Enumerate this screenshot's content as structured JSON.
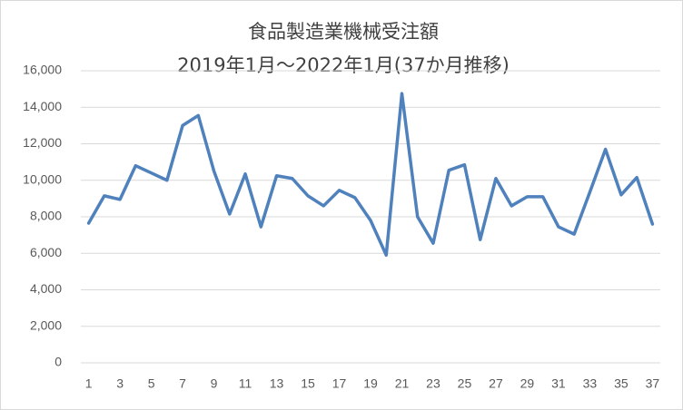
{
  "chart_data": {
    "type": "line",
    "title": "食品製造業機械受注額",
    "subtitle": "2019年1月～2022年1月(37か月推移)",
    "categories": [
      "1",
      null,
      "3",
      null,
      "5",
      null,
      "7",
      null,
      "9",
      null,
      "11",
      null,
      "13",
      null,
      "15",
      null,
      "17",
      null,
      "19",
      null,
      "21",
      null,
      "23",
      null,
      "25",
      null,
      "27",
      null,
      "29",
      null,
      "31",
      null,
      "33",
      null,
      "35",
      null,
      "37"
    ],
    "values": [
      7650,
      9150,
      8950,
      10800,
      10400,
      10000,
      13000,
      13550,
      10500,
      8150,
      10350,
      7450,
      10250,
      10100,
      9150,
      8600,
      9450,
      9050,
      7800,
      5900,
      14750,
      8000,
      6550,
      10550,
      10850,
      6750,
      10100,
      8600,
      9100,
      9100,
      7450,
      7050,
      9350,
      11700,
      9200,
      10150,
      7600
    ],
    "color": "#4f81bd",
    "ylim": [
      0,
      16000
    ],
    "yticks": [
      0,
      {
        "value": 2000,
        "label": "2,000"
      },
      {
        "value": 4000,
        "label": "4,000"
      },
      {
        "value": 6000,
        "label": "6,000"
      },
      {
        "value": 8000,
        "label": "8,000"
      },
      {
        "value": 10000,
        "label": "10,000"
      },
      {
        "value": 12000,
        "label": "12,000"
      },
      {
        "value": 14000,
        "label": "14,000"
      },
      {
        "value": 16000,
        "label": "16,000"
      }
    ],
    "grid": true
  }
}
